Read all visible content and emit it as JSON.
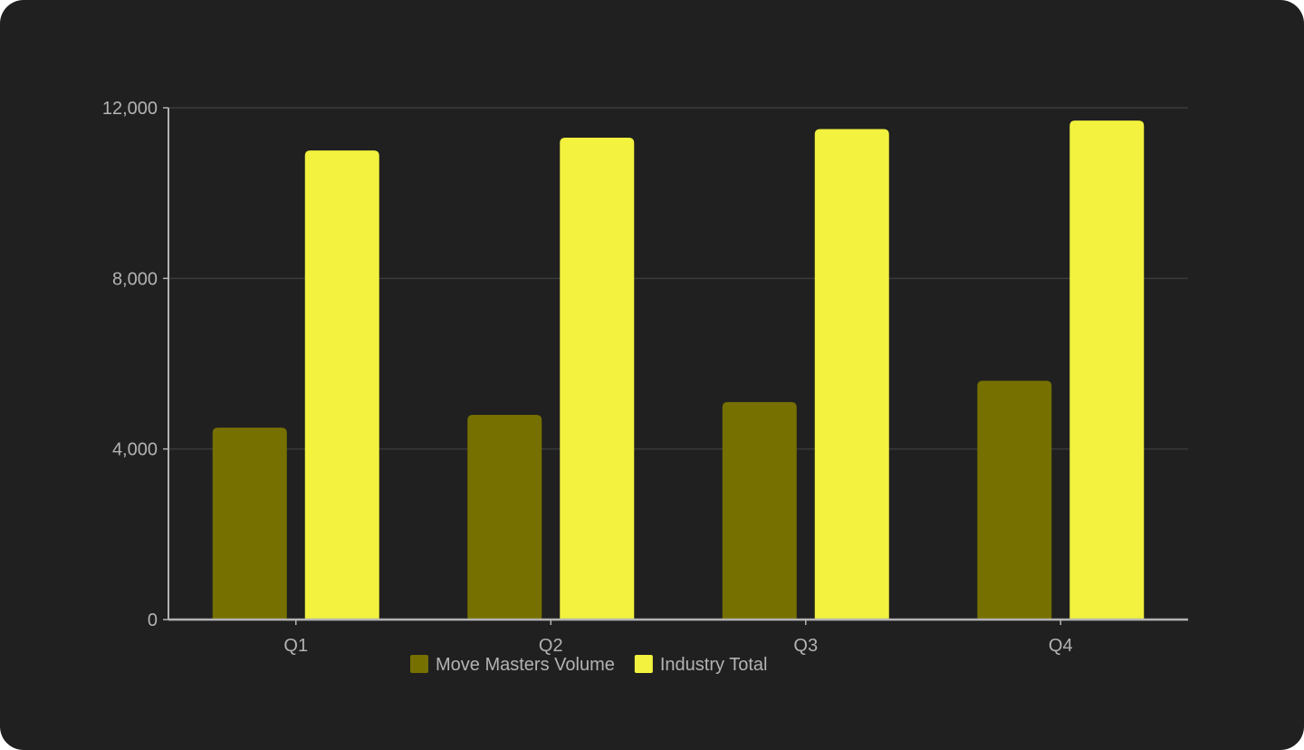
{
  "chart_data": {
    "type": "bar",
    "categories": [
      "Q1",
      "Q2",
      "Q3",
      "Q4"
    ],
    "series": [
      {
        "name": "Move Masters Volume",
        "values": [
          4500,
          4800,
          5100,
          5600
        ],
        "color": "#757000"
      },
      {
        "name": "Industry Total",
        "values": [
          11000,
          11300,
          11500,
          11700
        ],
        "color": "#f2f23f"
      }
    ],
    "y_ticks": [
      0,
      4000,
      8000,
      12000
    ],
    "y_tick_labels": [
      "0",
      "4,000",
      "8,000",
      "12,000"
    ],
    "ylim": [
      0,
      12000
    ],
    "grid": true,
    "legend_position": "bottom-center",
    "background": "#202020",
    "grid_color": "#3a3a3a",
    "axis_color": "#b3b3b3"
  }
}
